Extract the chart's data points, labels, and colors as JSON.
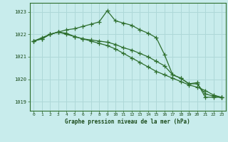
{
  "title": "Graphe pression niveau de la mer (hPa)",
  "bg_color": "#c8ecec",
  "grid_color": "#aed8d8",
  "line_color": "#2d6e2d",
  "marker_color": "#2d6e2d",
  "ylim": [
    1018.6,
    1023.4
  ],
  "xlim": [
    -0.5,
    23.5
  ],
  "yticks": [
    1019,
    1020,
    1021,
    1022,
    1023
  ],
  "xticks": [
    0,
    1,
    2,
    3,
    4,
    5,
    6,
    7,
    8,
    9,
    10,
    11,
    12,
    13,
    14,
    15,
    16,
    17,
    18,
    19,
    20,
    21,
    22,
    23
  ],
  "series1": [
    1021.7,
    1021.85,
    1022.0,
    1022.1,
    1022.2,
    1022.25,
    1022.35,
    1022.45,
    1022.55,
    1023.05,
    1022.6,
    1022.5,
    1022.4,
    1022.2,
    1022.05,
    1021.85,
    1021.1,
    1020.2,
    1020.05,
    1019.8,
    1019.85,
    1019.2,
    1019.2,
    1019.2
  ],
  "series2": [
    1021.7,
    1021.8,
    1022.0,
    1022.1,
    1022.05,
    1021.9,
    1021.8,
    1021.7,
    1021.6,
    1021.5,
    1021.35,
    1021.15,
    1020.95,
    1020.75,
    1020.55,
    1020.35,
    1020.2,
    1020.05,
    1019.9,
    1019.75,
    1019.65,
    1019.5,
    1019.3,
    1019.2
  ],
  "series3": [
    1021.7,
    1021.8,
    1022.0,
    1022.1,
    1022.0,
    1021.9,
    1021.8,
    1021.75,
    1021.7,
    1021.65,
    1021.55,
    1021.4,
    1021.3,
    1021.15,
    1021.0,
    1020.8,
    1020.6,
    1020.2,
    1020.05,
    1019.8,
    1019.8,
    1019.35,
    1019.25,
    1019.2
  ]
}
